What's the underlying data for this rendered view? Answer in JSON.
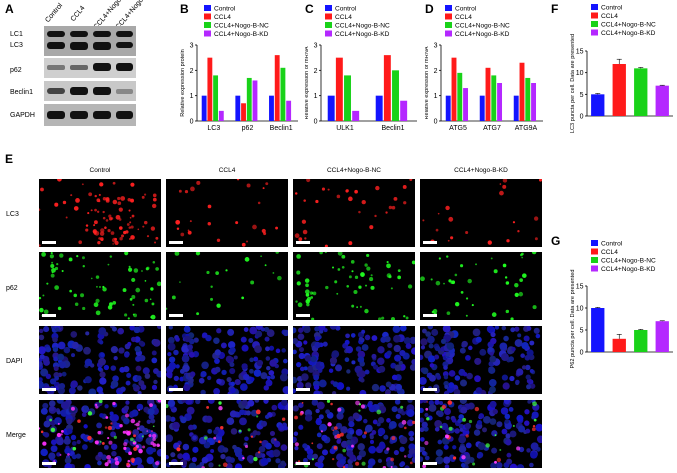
{
  "panels": {
    "A": "A",
    "B": "B",
    "C": "C",
    "D": "D",
    "E": "E",
    "F": "F",
    "G": "G"
  },
  "colors": {
    "Control": "#1414ff",
    "CCL4": "#ff1a1a",
    "NC": "#19d219",
    "KD": "#b428ff"
  },
  "blot": {
    "columns": [
      "Control",
      "CCL4",
      "CCL4+Nogo-B-NC",
      "CCL4+Nogo-B-KD"
    ],
    "rows": [
      "LC1",
      "LC3",
      "p62",
      "Beclin1",
      "GAPDH"
    ]
  },
  "legend_labels": [
    "Control",
    "CCL4",
    "CCL4+Nogo-B-NC",
    "CCL4+Nogo-B-KD"
  ],
  "chart_data": [
    {
      "id": "B",
      "type": "bar",
      "ylabel": "Relative expression protein",
      "categories": [
        "LC3",
        "p62",
        "Beclin1"
      ],
      "ylim": [
        0,
        3
      ],
      "yticks": [
        0,
        1,
        2,
        3
      ],
      "series": [
        {
          "name": "Control",
          "values": [
            1.0,
            1.0,
            1.0
          ]
        },
        {
          "name": "CCL4",
          "values": [
            2.5,
            0.7,
            2.6
          ]
        },
        {
          "name": "CCL4+Nogo-B-NC",
          "values": [
            1.8,
            1.7,
            2.1
          ]
        },
        {
          "name": "CCL4+Nogo-B-KD",
          "values": [
            0.4,
            1.6,
            0.8
          ]
        }
      ]
    },
    {
      "id": "C",
      "type": "bar",
      "ylabel": "Relative expression of mRNA",
      "categories": [
        "ULK1",
        "Beclin1"
      ],
      "ylim": [
        0,
        3
      ],
      "yticks": [
        0,
        1,
        2,
        3
      ],
      "series": [
        {
          "name": "Control",
          "values": [
            1.0,
            1.0
          ]
        },
        {
          "name": "CCL4",
          "values": [
            2.5,
            2.6
          ]
        },
        {
          "name": "CCL4+Nogo-B-NC",
          "values": [
            1.8,
            2.0
          ]
        },
        {
          "name": "CCL4+Nogo-B-KD",
          "values": [
            0.4,
            0.8
          ]
        }
      ]
    },
    {
      "id": "D",
      "type": "bar",
      "ylabel": "Relative expression of mRNA",
      "categories": [
        "ATG5",
        "ATG7",
        "ATG9A"
      ],
      "ylim": [
        0,
        3
      ],
      "yticks": [
        0,
        1,
        2,
        3
      ],
      "series": [
        {
          "name": "Control",
          "values": [
            1.0,
            1.0,
            1.0
          ]
        },
        {
          "name": "CCL4",
          "values": [
            2.5,
            2.1,
            2.3
          ]
        },
        {
          "name": "CCL4+Nogo-B-NC",
          "values": [
            1.9,
            1.8,
            1.7
          ]
        },
        {
          "name": "CCL4+Nogo-B-KD",
          "values": [
            1.3,
            1.5,
            1.5
          ]
        }
      ]
    },
    {
      "id": "F",
      "type": "bar",
      "ylabel": "LC3 puncta per cell. Data are presented",
      "categories": [
        "Control",
        "CCL4",
        "CCL4+Nogo-B-NC",
        "CCL4+Nogo-B-KD"
      ],
      "ylim": [
        0,
        15
      ],
      "yticks": [
        0,
        5,
        10,
        15
      ],
      "values": [
        5.0,
        12.0,
        11.0,
        7.0
      ]
    },
    {
      "id": "G",
      "type": "bar",
      "ylabel": "P62 puncta per cell. Data are presented",
      "categories": [
        "Control",
        "CCL4",
        "CCL4+Nogo-B-NC",
        "CCL4+Nogo-B-KD"
      ],
      "ylim": [
        0,
        15
      ],
      "yticks": [
        0,
        5,
        10,
        15
      ],
      "values": [
        10.0,
        3.0,
        5.0,
        7.0
      ]
    }
  ],
  "micrographs": {
    "columns": [
      "Control",
      "CCL4",
      "CCL4+Nogo-B-NC",
      "CCL4+Nogo-B-KD"
    ],
    "rows": [
      "LC3",
      "p62",
      "DAPI",
      "Merge"
    ]
  }
}
